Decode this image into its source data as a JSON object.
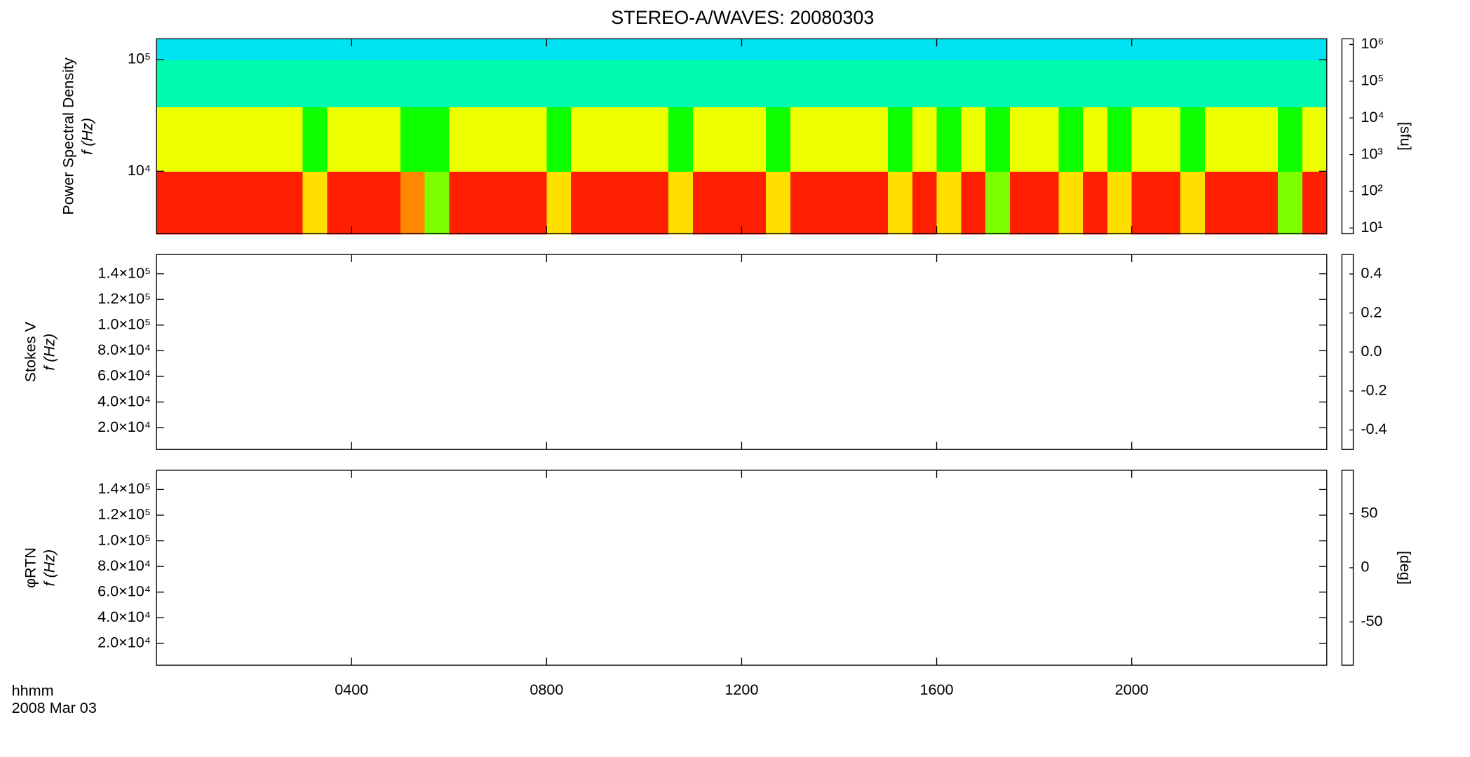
{
  "figure": {
    "title": "STEREO-A/WAVES: 20080303",
    "x_label": "hhmm",
    "date": "2008 Mar 03"
  },
  "chart_data": [
    {
      "type": "heatmap",
      "ylabel": [
        "Power Spectral Density",
        "f (Hz)"
      ],
      "log_y": true,
      "xlim": [
        0,
        24
      ],
      "ylim": [
        2760,
        153500
      ],
      "yticks": [
        {
          "value": 10000,
          "label": "10⁴"
        },
        {
          "value": 100000,
          "label": "10⁵"
        }
      ],
      "x_edges": [
        0,
        0.5,
        1,
        1.5,
        2,
        2.5,
        3,
        3.5,
        4,
        4.5,
        5,
        5.5,
        6,
        6.5,
        7,
        7.5,
        8,
        8.5,
        9,
        9.5,
        10,
        10.5,
        11,
        11.5,
        12,
        12.5,
        13,
        13.5,
        14,
        14.5,
        15,
        15.5,
        16,
        16.5,
        17,
        17.5,
        18,
        18.5,
        19,
        19.5,
        20,
        20.5,
        21,
        21.5,
        22,
        22.5,
        23,
        23.5,
        24
      ],
      "y_edges": [
        2760,
        10000,
        38000,
        100000,
        153500
      ],
      "z": [
        [
          1000000,
          1000000,
          1000000,
          1000000,
          1000000,
          1000000,
          100000,
          1000000,
          1000000,
          1000000,
          300000,
          30000,
          1000000,
          1000000,
          1000000,
          1000000,
          100000,
          1000000,
          1000000,
          1000000,
          1000000,
          100000,
          1000000,
          1000000,
          1000000,
          100000,
          1000000,
          1000000,
          1000000,
          1000000,
          100000,
          1000000,
          100000,
          1000000,
          30000,
          1000000,
          1000000,
          100000,
          1000000,
          100000,
          1000000,
          1000000,
          100000,
          1000000,
          1000000,
          1000000,
          30000,
          1000000
        ],
        [
          60000,
          60000,
          60000,
          60000,
          60000,
          60000,
          15000,
          60000,
          60000,
          60000,
          15000,
          15000,
          60000,
          60000,
          60000,
          60000,
          15000,
          60000,
          60000,
          60000,
          60000,
          15000,
          60000,
          60000,
          60000,
          15000,
          60000,
          60000,
          60000,
          60000,
          15000,
          60000,
          15000,
          60000,
          15000,
          60000,
          60000,
          15000,
          60000,
          15000,
          60000,
          60000,
          15000,
          60000,
          60000,
          60000,
          15000,
          60000
        ],
        [
          2500,
          2500,
          2500,
          2500,
          2500,
          2500,
          2500,
          2500,
          2500,
          2500,
          2500,
          2500,
          2500,
          2500,
          2500,
          2500,
          2500,
          2500,
          2500,
          2500,
          2500,
          2500,
          2500,
          2500,
          2500,
          2500,
          2500,
          2500,
          2500,
          2500,
          2500,
          2500,
          2500,
          2500,
          2500,
          2500,
          2500,
          2500,
          2500,
          2500,
          2500,
          2500,
          2500,
          2500,
          2500,
          2500,
          2500,
          2500
        ],
        [
          900,
          900,
          900,
          900,
          900,
          900,
          900,
          900,
          900,
          900,
          900,
          900,
          900,
          900,
          900,
          900,
          900,
          900,
          900,
          900,
          900,
          900,
          900,
          900,
          900,
          900,
          900,
          900,
          900,
          900,
          900,
          900,
          900,
          900,
          900,
          900,
          900,
          900,
          900,
          900,
          900,
          900,
          900,
          900,
          900,
          900,
          900,
          900
        ]
      ],
      "colorbar": {
        "log": true,
        "zlim": [
          7,
          1430000
        ],
        "label": "[sfu]",
        "ticks": [
          {
            "value": 10,
            "label": "10¹"
          },
          {
            "value": 100,
            "label": "10²"
          },
          {
            "value": 1000,
            "label": "10³"
          },
          {
            "value": 10000,
            "label": "10⁴"
          },
          {
            "value": 100000,
            "label": "10⁵"
          },
          {
            "value": 1000000,
            "label": "10⁶"
          }
        ]
      }
    },
    {
      "type": "heatmap",
      "ylabel": [
        "Stokes V",
        "f (Hz)"
      ],
      "log_y": false,
      "xlim": [
        0,
        24
      ],
      "ylim": [
        3000,
        155000
      ],
      "yticks": [
        {
          "value": 20000,
          "label": "2.0×10⁴"
        },
        {
          "value": 40000,
          "label": "4.0×10⁴"
        },
        {
          "value": 60000,
          "label": "6.0×10⁴"
        },
        {
          "value": 80000,
          "label": "8.0×10⁴"
        },
        {
          "value": 100000,
          "label": "1.0×10⁵"
        },
        {
          "value": 120000,
          "label": "1.2×10⁵"
        },
        {
          "value": 140000,
          "label": "1.4×10⁵"
        }
      ],
      "colorbar": {
        "log": false,
        "zlim": [
          -0.5,
          0.5
        ],
        "ticks": [
          -0.4,
          -0.2,
          {
            "value": 0,
            "label": "0.0"
          },
          0.2,
          0.4
        ]
      }
    },
    {
      "type": "heatmap",
      "ylabel": [
        "φRTN",
        "f (Hz)"
      ],
      "log_y": false,
      "xlim": [
        0,
        24
      ],
      "ylim": [
        3000,
        155000
      ],
      "yticks": [
        {
          "value": 20000,
          "label": "2.0×10⁴"
        },
        {
          "value": 40000,
          "label": "4.0×10⁴"
        },
        {
          "value": 60000,
          "label": "6.0×10⁴"
        },
        {
          "value": 80000,
          "label": "8.0×10⁴"
        },
        {
          "value": 100000,
          "label": "1.0×10⁵"
        },
        {
          "value": 120000,
          "label": "1.2×10⁵"
        },
        {
          "value": 140000,
          "label": "1.4×10⁵"
        }
      ],
      "xticks": [
        {
          "value": 4,
          "label": "0400"
        },
        {
          "value": 8,
          "label": "0800"
        },
        {
          "value": 12,
          "label": "1200"
        },
        {
          "value": 16,
          "label": "1600"
        },
        {
          "value": 20,
          "label": "2000"
        }
      ],
      "colorbar": {
        "log": false,
        "zlim": [
          -90,
          90
        ],
        "label": "[deg]",
        "ticks": [
          -50,
          0,
          50
        ]
      }
    }
  ]
}
